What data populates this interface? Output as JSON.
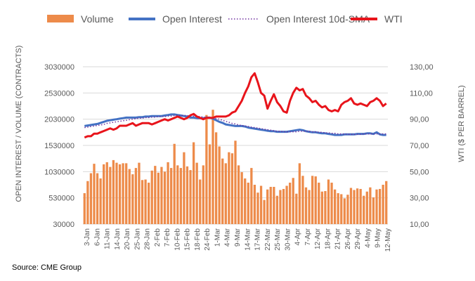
{
  "source": "Source: CME Group",
  "chart_data": {
    "type": "bar+line",
    "legend": {
      "placement": "top",
      "items": [
        {
          "label": "Volume",
          "style": "bar",
          "color": "#ED8B4A"
        },
        {
          "label": "Open Interest",
          "style": "line",
          "color": "#4472C4"
        },
        {
          "label": "Open Interest 10d-SMA",
          "style": "dotted",
          "color": "#7030A0"
        },
        {
          "label": "WTI",
          "style": "line",
          "color": "#E8141B"
        }
      ]
    },
    "y_left": {
      "label": "OPEN INTEREST / VOLUME (CONTRACTS)",
      "min": 30000,
      "max": 3030000,
      "ticks": [
        "3030000",
        "2530000",
        "2030000",
        "1530000",
        "1030000",
        "530000",
        "30000"
      ]
    },
    "y_right": {
      "label": "WTI ($ PER BARREL)",
      "min": 10,
      "max": 130,
      "ticks": [
        "130,00",
        "110,00",
        "90,00",
        "70,00",
        "50,00",
        "30,00",
        "10,00"
      ]
    },
    "x_ticks": [
      "3-Jan",
      "6-Jan",
      "11-Jan",
      "14-Jan",
      "20-Jan",
      "25-Jan",
      "28-Jan",
      "2-Feb",
      "7-Feb",
      "10-Feb",
      "15-Feb",
      "18-Feb",
      "24-Feb",
      "1-Mar",
      "4-Mar",
      "9-Mar",
      "14-Mar",
      "17-Mar",
      "22-Mar",
      "25-Mar",
      "30-Mar",
      "4-Apr",
      "7-Apr",
      "12-Apr",
      "18-Apr",
      "21-Apr",
      "26-Apr",
      "29-Apr",
      "4-May",
      "9-May",
      "12-May"
    ],
    "grid": "horizontal",
    "series": [
      {
        "name": "Volume",
        "type": "bar",
        "axis": "left",
        "values": [
          620000,
          850000,
          1000000,
          1180000,
          1000000,
          900000,
          1170000,
          1210000,
          1120000,
          1250000,
          1200000,
          1170000,
          1190000,
          1190000,
          1080000,
          980000,
          1100000,
          1200000,
          870000,
          880000,
          820000,
          1050000,
          1140000,
          1010000,
          1120000,
          1030000,
          1210000,
          1100000,
          1560000,
          1150000,
          1100000,
          1400000,
          1130000,
          1060000,
          1590000,
          1200000,
          880000,
          1150000,
          2110000,
          1550000,
          2210000,
          1780000,
          1510000,
          1280000,
          1190000,
          1400000,
          1380000,
          1620000,
          1150000,
          1020000,
          900000,
          820000,
          1100000,
          780000,
          630000,
          760000,
          490000,
          690000,
          740000,
          740000,
          570000,
          680000,
          700000,
          760000,
          820000,
          910000,
          610000,
          1190000,
          950000,
          730000,
          680000,
          950000,
          940000,
          820000,
          650000,
          660000,
          880000,
          820000,
          690000,
          620000,
          600000,
          520000,
          590000,
          720000,
          680000,
          710000,
          700000,
          570000,
          650000,
          730000,
          540000,
          690000,
          700000,
          780000,
          850000
        ]
      },
      {
        "name": "Open Interest",
        "type": "line",
        "axis": "left",
        "values": [
          1900000,
          1910000,
          1920000,
          1930000,
          1940000,
          1960000,
          1980000,
          2000000,
          2010000,
          2020000,
          2030000,
          2040000,
          2050000,
          2060000,
          2060000,
          2060000,
          2060000,
          2070000,
          2070000,
          2080000,
          2080000,
          2090000,
          2090000,
          2090000,
          2090000,
          2100000,
          2110000,
          2120000,
          2120000,
          2110000,
          2100000,
          2090000,
          2080000,
          2060000,
          2060000,
          2050000,
          2050000,
          2050000,
          2060000,
          2060000,
          2040000,
          2010000,
          1980000,
          1960000,
          1930000,
          1920000,
          1910000,
          1900000,
          1900000,
          1900000,
          1890000,
          1870000,
          1860000,
          1850000,
          1840000,
          1830000,
          1820000,
          1810000,
          1800000,
          1800000,
          1790000,
          1790000,
          1790000,
          1790000,
          1800000,
          1810000,
          1820000,
          1830000,
          1820000,
          1800000,
          1790000,
          1780000,
          1780000,
          1770000,
          1760000,
          1760000,
          1750000,
          1740000,
          1730000,
          1730000,
          1730000,
          1740000,
          1740000,
          1740000,
          1740000,
          1750000,
          1750000,
          1750000,
          1760000,
          1760000,
          1750000,
          1780000,
          1740000,
          1730000,
          1730000
        ]
      },
      {
        "name": "Open Interest 10d-SMA",
        "type": "dotted",
        "axis": "left",
        "values": [
          1870000,
          1880000,
          1890000,
          1900000,
          1910000,
          1920000,
          1930000,
          1950000,
          1960000,
          1970000,
          1980000,
          1990000,
          2000000,
          2010000,
          2020000,
          2030000,
          2040000,
          2050000,
          2050000,
          2060000,
          2060000,
          2070000,
          2070000,
          2080000,
          2080000,
          2080000,
          2090000,
          2090000,
          2100000,
          2100000,
          2100000,
          2100000,
          2100000,
          2090000,
          2090000,
          2080000,
          2080000,
          2070000,
          2060000,
          2060000,
          2050000,
          2040000,
          2030000,
          2010000,
          1990000,
          1970000,
          1950000,
          1940000,
          1920000,
          1910000,
          1900000,
          1890000,
          1880000,
          1870000,
          1860000,
          1850000,
          1840000,
          1830000,
          1820000,
          1810000,
          1800000,
          1800000,
          1790000,
          1790000,
          1790000,
          1790000,
          1790000,
          1800000,
          1800000,
          1800000,
          1800000,
          1790000,
          1790000,
          1780000,
          1780000,
          1770000,
          1770000,
          1760000,
          1760000,
          1750000,
          1750000,
          1750000,
          1740000,
          1740000,
          1740000,
          1740000,
          1740000,
          1750000,
          1750000,
          1750000,
          1750000,
          1750000,
          1750000,
          1750000,
          1750000
        ]
      },
      {
        "name": "WTI",
        "type": "line",
        "axis": "right",
        "values": [
          76,
          77,
          77,
          79,
          79,
          80,
          81,
          82,
          83,
          82,
          83,
          85,
          85,
          85,
          86,
          87,
          85,
          86,
          87,
          87,
          87,
          86,
          87,
          88,
          89,
          90,
          89,
          90,
          91,
          92,
          91,
          90,
          91,
          93,
          94,
          92,
          91,
          90,
          91,
          91,
          91,
          92,
          92,
          92,
          92,
          93,
          95,
          96,
          100,
          104,
          110,
          115,
          122,
          125,
          118,
          110,
          108,
          98,
          104,
          109,
          103,
          100,
          96,
          95,
          104,
          110,
          114,
          112,
          113,
          108,
          106,
          103,
          104,
          101,
          99,
          100,
          97,
          96,
          97,
          96,
          101,
          103,
          104,
          106,
          102,
          101,
          102,
          101,
          100,
          103,
          104,
          106,
          104,
          100,
          102
        ]
      }
    ]
  }
}
